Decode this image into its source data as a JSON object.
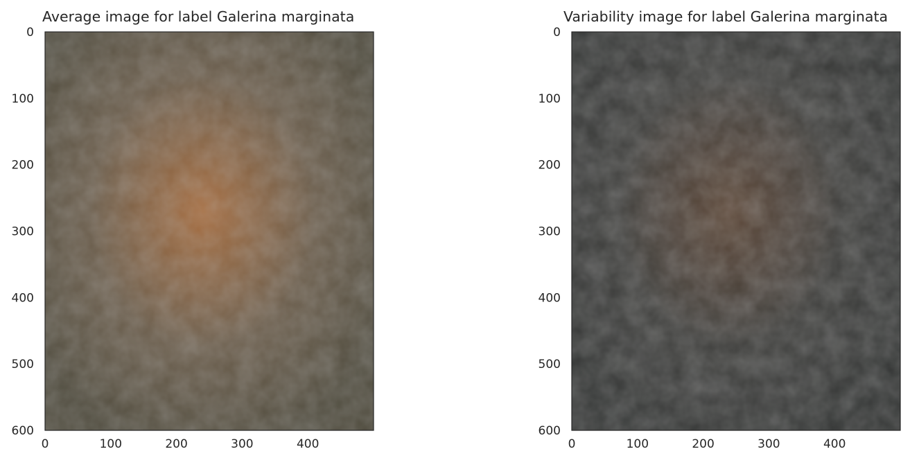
{
  "chart_data": [
    {
      "type": "heatmap",
      "title": "Average image for label Galerina marginata",
      "xlabel": "",
      "ylabel": "",
      "xlim": [
        0,
        500
      ],
      "ylim": [
        600,
        0
      ],
      "x_ticks": [
        0,
        100,
        200,
        300,
        400
      ],
      "y_ticks": [
        0,
        100,
        200,
        300,
        400,
        500,
        600
      ],
      "grid": false,
      "colors": {
        "base": "#6b5d4b",
        "center": "#a66b3c",
        "edge_dark": "#4e4a3c"
      }
    },
    {
      "type": "heatmap",
      "title": "Variability image for label Galerina marginata",
      "xlabel": "",
      "ylabel": "",
      "xlim": [
        0,
        500
      ],
      "ylim": [
        600,
        0
      ],
      "x_ticks": [
        0,
        100,
        200,
        300,
        400
      ],
      "y_ticks": [
        0,
        100,
        200,
        300,
        400,
        500,
        600
      ],
      "grid": false,
      "colors": {
        "base": "#3e3e3c",
        "center": "#5a4434",
        "edge_dark": "#333534"
      }
    }
  ]
}
